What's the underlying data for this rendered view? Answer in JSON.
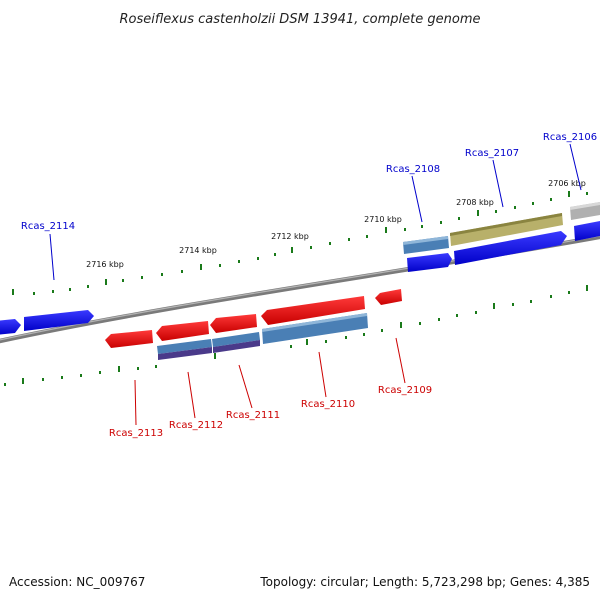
{
  "title": "Roseiflexus castenholzii DSM 13941, complete genome",
  "accession": "Accession: NC_009767",
  "topology": "Topology: circular; Length: 5,723,298 bp; Genes: 4,385",
  "scale_labels": [
    "2716 kbp",
    "2714 kbp",
    "2712 kbp",
    "2710 kbp",
    "2708 kbp",
    "2706 kbp"
  ],
  "genes_top": [
    "Rcas_2114",
    "Rcas_2108",
    "Rcas_2107",
    "Rcas_2106"
  ],
  "genes_bottom": [
    "Rcas_2113",
    "Rcas_2112",
    "Rcas_2111",
    "Rcas_2110",
    "Rcas_2109"
  ],
  "colors": {
    "forward_label": "#0000cc",
    "reverse_label": "#cc0000",
    "forward_gene": "#0000ee",
    "reverse_gene": "#ee0000",
    "cds_steel": "#4a7fb5",
    "cds_purple": "#4a3a8a",
    "cds_olive": "#b8b06a",
    "cds_grey": "#b0b0b0",
    "tick": "#1a7a1a",
    "backbone": "#808080"
  }
}
